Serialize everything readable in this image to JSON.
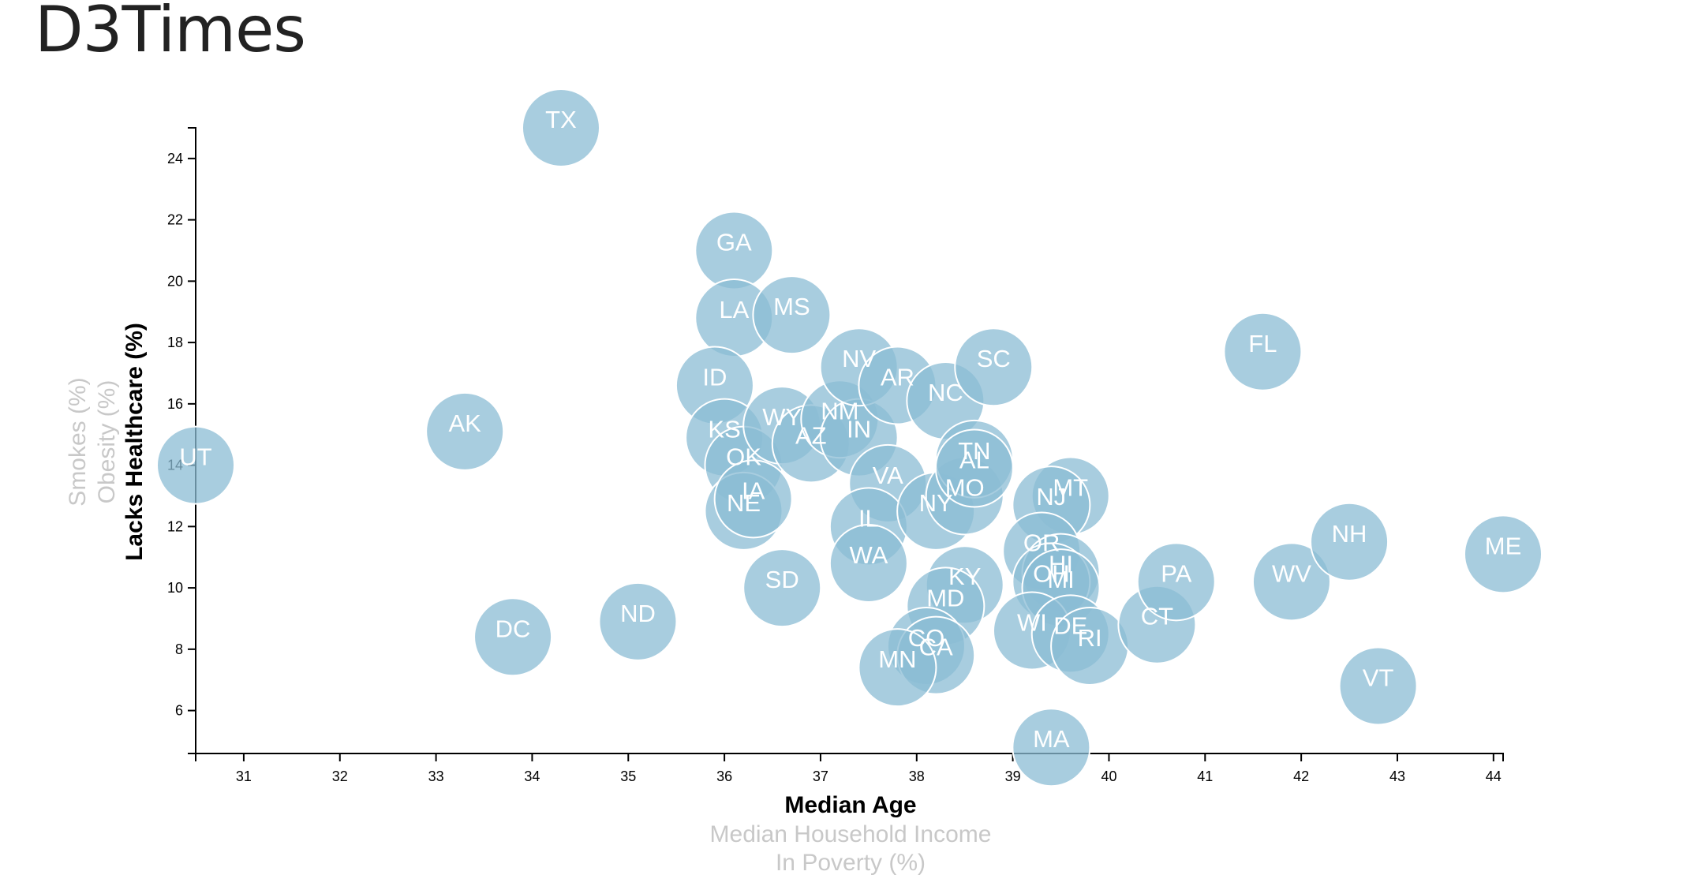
{
  "page": {
    "title": "D3Times"
  },
  "chart_data": {
    "type": "scatter",
    "x_axis": {
      "active": "Median Age",
      "options": [
        "Median Age",
        "Median Household Income",
        "In Poverty (%)"
      ],
      "range": [
        30.5,
        44.1
      ],
      "ticks": [
        31,
        32,
        33,
        34,
        35,
        36,
        37,
        38,
        39,
        40,
        41,
        42,
        43,
        44
      ]
    },
    "y_axis": {
      "active": "Lacks Healthcare (%)",
      "options": [
        "Lacks Healthcare (%)",
        "Obesity (%)",
        "Smokes (%)"
      ],
      "range": [
        4.6,
        25
      ],
      "ticks": [
        6,
        8,
        10,
        12,
        14,
        16,
        18,
        20,
        22,
        24
      ]
    },
    "marker_color": "#8bbcd4",
    "points": [
      {
        "abbr": "UT",
        "age": 30.5,
        "healthcare": 14.0
      },
      {
        "abbr": "AK",
        "age": 33.3,
        "healthcare": 15.1
      },
      {
        "abbr": "DC",
        "age": 33.8,
        "healthcare": 8.4
      },
      {
        "abbr": "TX",
        "age": 34.3,
        "healthcare": 25.0
      },
      {
        "abbr": "ND",
        "age": 35.1,
        "healthcare": 8.9
      },
      {
        "abbr": "GA",
        "age": 36.1,
        "healthcare": 21.0
      },
      {
        "abbr": "LA",
        "age": 36.1,
        "healthcare": 18.8
      },
      {
        "abbr": "MS",
        "age": 36.7,
        "healthcare": 18.9
      },
      {
        "abbr": "ID",
        "age": 35.9,
        "healthcare": 16.6
      },
      {
        "abbr": "KS",
        "age": 36.0,
        "healthcare": 14.9
      },
      {
        "abbr": "OK",
        "age": 36.2,
        "healthcare": 14.0
      },
      {
        "abbr": "NE",
        "age": 36.2,
        "healthcare": 12.5
      },
      {
        "abbr": "IA",
        "age": 36.3,
        "healthcare": 12.9
      },
      {
        "abbr": "WY",
        "age": 36.6,
        "healthcare": 15.3
      },
      {
        "abbr": "AZ",
        "age": 36.9,
        "healthcare": 14.7
      },
      {
        "abbr": "SD",
        "age": 36.6,
        "healthcare": 10.0
      },
      {
        "abbr": "NM",
        "age": 37.2,
        "healthcare": 15.5
      },
      {
        "abbr": "IN",
        "age": 37.4,
        "healthcare": 14.9
      },
      {
        "abbr": "NV",
        "age": 37.4,
        "healthcare": 17.2
      },
      {
        "abbr": "AR",
        "age": 37.8,
        "healthcare": 16.6
      },
      {
        "abbr": "NC",
        "age": 38.3,
        "healthcare": 16.1
      },
      {
        "abbr": "SC",
        "age": 38.8,
        "healthcare": 17.2
      },
      {
        "abbr": "VA",
        "age": 37.7,
        "healthcare": 13.4
      },
      {
        "abbr": "IL",
        "age": 37.5,
        "healthcare": 12.0
      },
      {
        "abbr": "WA",
        "age": 37.5,
        "healthcare": 10.8
      },
      {
        "abbr": "NY",
        "age": 38.2,
        "healthcare": 12.5
      },
      {
        "abbr": "MO",
        "age": 38.5,
        "healthcare": 13.0
      },
      {
        "abbr": "TN",
        "age": 38.6,
        "healthcare": 14.2
      },
      {
        "abbr": "AL",
        "age": 38.6,
        "healthcare": 13.9
      },
      {
        "abbr": "KY",
        "age": 38.5,
        "healthcare": 10.1
      },
      {
        "abbr": "MD",
        "age": 38.3,
        "healthcare": 9.4
      },
      {
        "abbr": "CO",
        "age": 38.1,
        "healthcare": 8.1
      },
      {
        "abbr": "CA",
        "age": 38.2,
        "healthcare": 7.8
      },
      {
        "abbr": "MN",
        "age": 37.8,
        "healthcare": 7.4
      },
      {
        "abbr": "MT",
        "age": 39.6,
        "healthcare": 13.0
      },
      {
        "abbr": "NJ",
        "age": 39.4,
        "healthcare": 12.7
      },
      {
        "abbr": "OR",
        "age": 39.3,
        "healthcare": 11.2
      },
      {
        "abbr": "HI",
        "age": 39.5,
        "healthcare": 10.5
      },
      {
        "abbr": "OH",
        "age": 39.4,
        "healthcare": 10.2
      },
      {
        "abbr": "MI",
        "age": 39.5,
        "healthcare": 10.0
      },
      {
        "abbr": "WI",
        "age": 39.2,
        "healthcare": 8.6
      },
      {
        "abbr": "DE",
        "age": 39.6,
        "healthcare": 8.5
      },
      {
        "abbr": "RI",
        "age": 39.8,
        "healthcare": 8.1
      },
      {
        "abbr": "MA",
        "age": 39.4,
        "healthcare": 4.8
      },
      {
        "abbr": "CT",
        "age": 40.5,
        "healthcare": 8.8
      },
      {
        "abbr": "PA",
        "age": 40.7,
        "healthcare": 10.2
      },
      {
        "abbr": "FL",
        "age": 41.6,
        "healthcare": 17.7
      },
      {
        "abbr": "WV",
        "age": 41.9,
        "healthcare": 10.2
      },
      {
        "abbr": "NH",
        "age": 42.5,
        "healthcare": 11.5
      },
      {
        "abbr": "VT",
        "age": 42.8,
        "healthcare": 6.8
      },
      {
        "abbr": "ME",
        "age": 44.1,
        "healthcare": 11.1
      }
    ]
  }
}
